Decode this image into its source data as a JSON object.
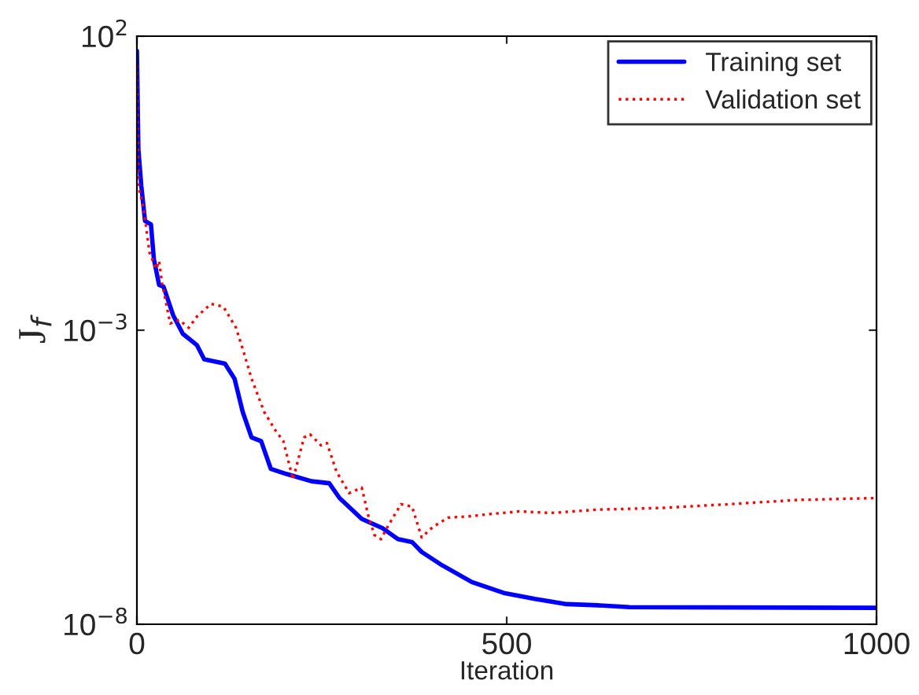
{
  "chart_data": {
    "type": "line",
    "xlabel": "Iteration",
    "ylabel": "J$_{f}$",
    "log": "y",
    "grid": false,
    "legend": "top right",
    "xlim": [
      0,
      1000
    ],
    "xticks": [
      0,
      500,
      1000
    ],
    "ylim": [
      1e-08,
      100
    ],
    "yticks": [
      {
        "value": 1e-08,
        "label": "10$^{−8}$"
      },
      {
        "value": 0.001,
        "label": "10$^{−3}$"
      },
      {
        "value": 100,
        "label": "10$^{2}$"
      }
    ],
    "series": [
      {
        "name": "Training set",
        "color": "#0000ff",
        "line_style": "solid",
        "x": [
          0,
          2,
          6,
          11,
          19,
          23,
          30,
          36,
          49,
          62,
          81,
          91,
          119,
          132,
          143,
          155,
          168,
          181,
          202,
          236,
          260,
          274,
          304,
          332,
          353,
          372,
          385,
          413,
          453,
          496,
          538,
          581,
          623,
          666,
          1000
        ],
        "values": [
          56,
          1.2,
          0.28,
          0.072,
          0.063,
          0.016,
          0.0059,
          0.0055,
          0.0018,
          0.00087,
          0.00056,
          0.00032,
          0.00027,
          0.00015,
          4.1e-05,
          1.5e-05,
          1.3e-05,
          4.4e-06,
          3.6e-06,
          2.7e-06,
          2.5e-06,
          1.4e-06,
          6.2e-07,
          4.3e-07,
          2.8e-07,
          2.5e-07,
          1.7e-07,
          1e-07,
          5.2e-08,
          3.4e-08,
          2.7e-08,
          2.2e-08,
          2.1e-08,
          1.95e-08,
          1.9e-08
        ]
      },
      {
        "name": "Validation set",
        "color": "#ff0000",
        "line_style": "dotted",
        "x": [
          0,
          2,
          9,
          17,
          26,
          30,
          34,
          45,
          57,
          70,
          81,
          100,
          117,
          134,
          145,
          155,
          172,
          187,
          198,
          211,
          226,
          234,
          249,
          257,
          270,
          287,
          304,
          313,
          321,
          330,
          340,
          357,
          372,
          385,
          400,
          421,
          453,
          474,
          517,
          560,
          623,
          709,
          800,
          894,
          1000
        ],
        "values": [
          32,
          0.28,
          0.12,
          0.021,
          0.011,
          0.015,
          0.0063,
          0.0013,
          0.0015,
          0.0011,
          0.0017,
          0.0028,
          0.0025,
          0.0011,
          0.0004,
          0.00015,
          4.1e-05,
          2e-05,
          1.3e-05,
          2.9e-06,
          1.5e-05,
          1.7e-05,
          1.1e-05,
          1.2e-05,
          3.9e-06,
          1.7e-06,
          2.1e-06,
          6.9e-07,
          3.3e-07,
          2.8e-07,
          4.8e-07,
          1.1e-06,
          1e-06,
          3e-07,
          4.5e-07,
          6.5e-07,
          6.9e-07,
          7.4e-07,
          8.3e-07,
          7.8e-07,
          8.9e-07,
          9.5e-07,
          1.1e-06,
          1.3e-06,
          1.4e-06
        ]
      }
    ]
  }
}
